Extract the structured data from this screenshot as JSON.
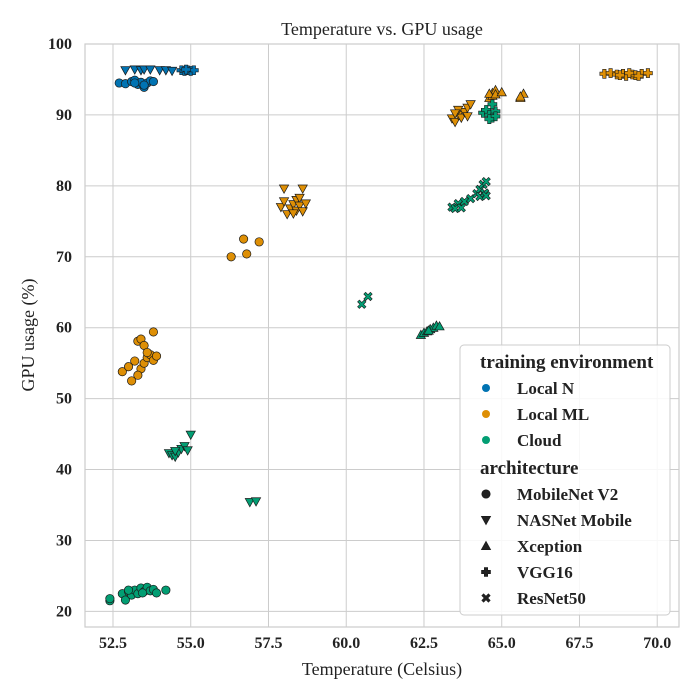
{
  "chart_data": {
    "type": "scatter",
    "title": "Temperature vs. GPU usage",
    "xlabel": "Temperature (Celsius)",
    "ylabel": "GPU usage (%)",
    "xlim": [
      51.6,
      70.7
    ],
    "ylim": [
      17.8,
      100
    ],
    "xticks": [
      52.5,
      55.0,
      57.5,
      60.0,
      62.5,
      65.0,
      67.5,
      70.0
    ],
    "xtick_labels": [
      "52.5",
      "55.0",
      "57.5",
      "60.0",
      "62.5",
      "65.0",
      "67.5",
      "70.0"
    ],
    "yticks": [
      20,
      30,
      40,
      50,
      60,
      70,
      80,
      90,
      100
    ],
    "ytick_labels": [
      "20",
      "30",
      "40",
      "50",
      "60",
      "70",
      "80",
      "90",
      "100"
    ],
    "grid": true,
    "legend_position": "bottom-right",
    "hue_title": "training environment",
    "style_title": "architecture",
    "environments": [
      {
        "name": "Local N",
        "color": "#0173b2"
      },
      {
        "name": "Local ML",
        "color": "#de8f05"
      },
      {
        "name": "Cloud",
        "color": "#029e73"
      }
    ],
    "architectures": [
      {
        "name": "MobileNet V2",
        "marker": "circle"
      },
      {
        "name": "NASNet Mobile",
        "marker": "triangle-down"
      },
      {
        "name": "Xception",
        "marker": "triangle-up"
      },
      {
        "name": "VGG16",
        "marker": "plus"
      },
      {
        "name": "ResNet50",
        "marker": "x"
      }
    ],
    "series": [
      {
        "environment": "Local N",
        "architecture": "MobileNet V2",
        "points": [
          [
            52.7,
            94.5
          ],
          [
            52.9,
            94.4
          ],
          [
            53.1,
            94.7
          ],
          [
            53.2,
            94.9
          ],
          [
            53.3,
            94.3
          ],
          [
            53.4,
            94.6
          ],
          [
            53.5,
            93.9
          ],
          [
            53.6,
            94.5
          ],
          [
            53.7,
            94.8
          ],
          [
            53.8,
            94.7
          ],
          [
            53.2,
            94.5
          ],
          [
            53.5,
            94.2
          ]
        ]
      },
      {
        "environment": "Local N",
        "architecture": "NASNet Mobile",
        "points": [
          [
            52.9,
            96.3
          ],
          [
            53.2,
            96.4
          ],
          [
            53.4,
            96.3
          ],
          [
            53.5,
            96.4
          ],
          [
            53.7,
            96.4
          ],
          [
            54.0,
            96.3
          ],
          [
            54.2,
            96.3
          ],
          [
            54.4,
            96.2
          ]
        ]
      },
      {
        "environment": "Local N",
        "architecture": "VGG16",
        "points": [
          [
            54.7,
            96.3
          ],
          [
            54.8,
            96.2
          ],
          [
            54.9,
            96.3
          ],
          [
            55.0,
            96.2
          ],
          [
            55.1,
            96.3
          ],
          [
            54.85,
            96.4
          ]
        ]
      },
      {
        "environment": "Local ML",
        "architecture": "MobileNet V2",
        "points": [
          [
            52.8,
            53.8
          ],
          [
            53.0,
            54.5
          ],
          [
            53.1,
            52.5
          ],
          [
            53.2,
            55.3
          ],
          [
            53.3,
            58.1
          ],
          [
            53.4,
            58.4
          ],
          [
            53.4,
            54.2
          ],
          [
            53.5,
            55.0
          ],
          [
            53.5,
            57.5
          ],
          [
            53.6,
            55.8
          ],
          [
            53.7,
            56.2
          ],
          [
            53.8,
            55.4
          ],
          [
            53.8,
            59.4
          ],
          [
            53.9,
            56.0
          ],
          [
            53.3,
            53.3
          ],
          [
            53.6,
            56.5
          ],
          [
            56.3,
            70.0
          ],
          [
            56.7,
            72.5
          ],
          [
            56.8,
            70.4
          ],
          [
            57.2,
            72.1
          ]
        ]
      },
      {
        "environment": "Local ML",
        "architecture": "NASNet Mobile",
        "points": [
          [
            57.9,
            77.0
          ],
          [
            58.0,
            77.8
          ],
          [
            58.0,
            79.6
          ],
          [
            58.1,
            76.0
          ],
          [
            58.2,
            76.8
          ],
          [
            58.3,
            77.4
          ],
          [
            58.4,
            78.0
          ],
          [
            58.4,
            76.5
          ],
          [
            58.5,
            78.3
          ],
          [
            58.5,
            77.2
          ],
          [
            58.6,
            79.6
          ],
          [
            58.6,
            76.4
          ],
          [
            58.7,
            77.5
          ],
          [
            58.3,
            76.1
          ],
          [
            63.4,
            89.5
          ],
          [
            63.5,
            89.0
          ],
          [
            63.6,
            90.0
          ],
          [
            63.7,
            89.6
          ],
          [
            63.8,
            90.4
          ],
          [
            63.9,
            91.0
          ],
          [
            64.0,
            91.5
          ],
          [
            63.6,
            90.7
          ],
          [
            63.9,
            89.8
          ],
          [
            63.5,
            90.2
          ]
        ]
      },
      {
        "environment": "Local ML",
        "architecture": "Xception",
        "points": [
          [
            64.6,
            92.4
          ],
          [
            64.7,
            93.1
          ],
          [
            64.7,
            92.7
          ],
          [
            64.8,
            93.5
          ],
          [
            64.6,
            93.0
          ],
          [
            64.8,
            92.9
          ],
          [
            65.0,
            93.2
          ],
          [
            65.6,
            92.4
          ],
          [
            65.7,
            93.0
          ],
          [
            65.6,
            92.6
          ]
        ]
      },
      {
        "environment": "Local ML",
        "architecture": "VGG16",
        "points": [
          [
            68.3,
            95.8
          ],
          [
            68.5,
            95.9
          ],
          [
            68.7,
            95.7
          ],
          [
            68.9,
            95.8
          ],
          [
            69.0,
            95.5
          ],
          [
            69.2,
            95.7
          ],
          [
            69.3,
            95.6
          ],
          [
            69.5,
            95.8
          ],
          [
            69.7,
            95.9
          ],
          [
            68.8,
            95.6
          ],
          [
            69.1,
            95.9
          ],
          [
            69.4,
            95.5
          ]
        ]
      },
      {
        "environment": "Cloud",
        "architecture": "MobileNet V2",
        "points": [
          [
            52.4,
            21.5
          ],
          [
            52.4,
            21.8
          ],
          [
            52.8,
            22.5
          ],
          [
            52.9,
            21.6
          ],
          [
            53.0,
            22.8
          ],
          [
            53.1,
            22.3
          ],
          [
            53.2,
            23.0
          ],
          [
            53.3,
            22.5
          ],
          [
            53.4,
            23.3
          ],
          [
            53.5,
            22.8
          ],
          [
            53.6,
            23.4
          ],
          [
            53.7,
            22.9
          ],
          [
            53.8,
            23.1
          ],
          [
            53.9,
            22.6
          ],
          [
            54.2,
            23.0
          ],
          [
            53.0,
            23.0
          ],
          [
            53.45,
            22.6
          ]
        ]
      },
      {
        "environment": "Cloud",
        "architecture": "NASNet Mobile",
        "points": [
          [
            54.3,
            42.3
          ],
          [
            54.4,
            42.0
          ],
          [
            54.5,
            41.8
          ],
          [
            54.6,
            42.4
          ],
          [
            54.7,
            42.9
          ],
          [
            54.8,
            43.3
          ],
          [
            54.9,
            42.7
          ],
          [
            55.0,
            44.9
          ],
          [
            54.5,
            42.6
          ],
          [
            56.9,
            35.4
          ],
          [
            57.1,
            35.5
          ]
        ]
      },
      {
        "environment": "Cloud",
        "architecture": "Xception",
        "points": [
          [
            62.4,
            59.0
          ],
          [
            62.5,
            59.3
          ],
          [
            62.6,
            59.5
          ],
          [
            62.7,
            59.8
          ],
          [
            62.8,
            60.0
          ],
          [
            62.9,
            60.3
          ],
          [
            63.0,
            60.2
          ],
          [
            62.65,
            59.6
          ]
        ]
      },
      {
        "environment": "Cloud",
        "architecture": "VGG16",
        "points": [
          [
            64.4,
            90.3
          ],
          [
            64.5,
            90.7
          ],
          [
            64.6,
            90.0
          ],
          [
            64.7,
            89.6
          ],
          [
            64.8,
            90.5
          ],
          [
            64.7,
            91.5
          ],
          [
            64.8,
            89.8
          ],
          [
            64.6,
            89.4
          ]
        ]
      },
      {
        "environment": "Cloud",
        "architecture": "ResNet50",
        "points": [
          [
            60.5,
            63.3
          ],
          [
            60.7,
            64.4
          ],
          [
            63.4,
            77.0
          ],
          [
            63.6,
            77.5
          ],
          [
            63.8,
            77.8
          ],
          [
            64.0,
            78.2
          ],
          [
            64.2,
            78.9
          ],
          [
            64.3,
            79.5
          ],
          [
            64.4,
            80.2
          ],
          [
            64.5,
            80.6
          ],
          [
            64.3,
            78.5
          ],
          [
            63.5,
            76.8
          ],
          [
            64.45,
            79.0
          ],
          [
            64.5,
            78.6
          ],
          [
            63.7,
            76.9
          ]
        ]
      }
    ]
  }
}
